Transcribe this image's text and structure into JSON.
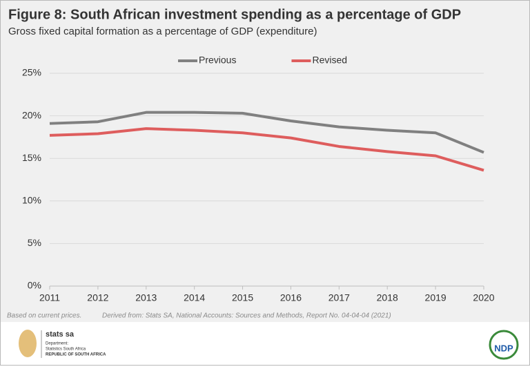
{
  "chart_data": {
    "type": "line",
    "title": "Figure 8: South African investment spending as a percentage of GDP",
    "subtitle": "Gross fixed capital formation as a percentage of GDP (expenditure)",
    "x": [
      2011,
      2012,
      2013,
      2014,
      2015,
      2016,
      2017,
      2018,
      2019,
      2020
    ],
    "xlim": [
      2011,
      2020
    ],
    "xticks": [
      2011,
      2012,
      2013,
      2014,
      2015,
      2016,
      2017,
      2018,
      2019,
      2020
    ],
    "ylim": [
      0,
      25
    ],
    "yticks": [
      {
        "value": 0,
        "label": "0%"
      },
      {
        "value": 5,
        "label": "5%"
      },
      {
        "value": 10,
        "label": "10%"
      },
      {
        "value": 15,
        "label": "15%"
      },
      {
        "value": 20,
        "label": "20%"
      },
      {
        "value": 25,
        "label": "25%"
      }
    ],
    "grid": true,
    "legend": "top",
    "series": [
      {
        "name": "Previous",
        "color": "#808080",
        "values": [
          19.1,
          19.3,
          20.4,
          20.4,
          20.3,
          19.4,
          18.7,
          18.3,
          18.0,
          15.7
        ]
      },
      {
        "name": "Revised",
        "color": "#de5d5d",
        "values": [
          17.7,
          17.9,
          18.5,
          18.3,
          18.0,
          17.4,
          16.4,
          15.8,
          15.3,
          13.6
        ]
      }
    ]
  },
  "notes": {
    "basis": "Based on current prices.",
    "source": "Derived from: Stats SA, National Accounts: Sources and Methods, Report No. 04-04-04 (2021)"
  },
  "logos": {
    "brand": "stats sa",
    "department": "Department:",
    "agency": "Statistics South Africa",
    "country": "REPUBLIC OF SOUTH AFRICA",
    "ndp": "NDP"
  }
}
